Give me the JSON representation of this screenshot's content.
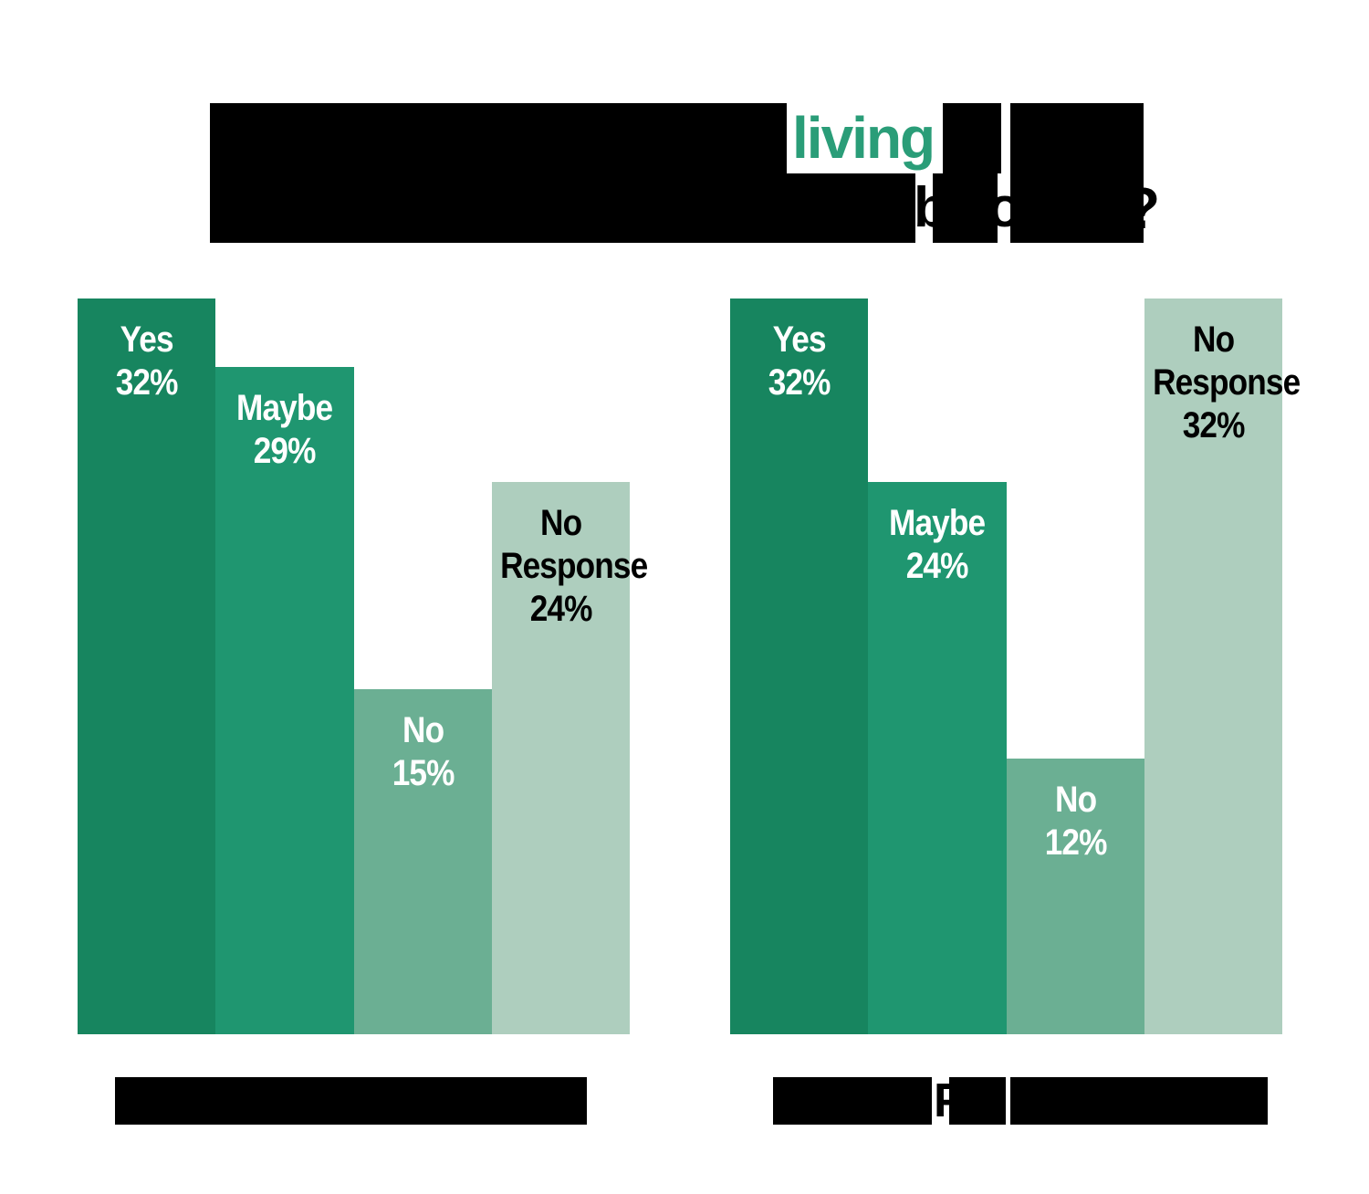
{
  "page": {
    "background": "#FFFFFF",
    "redacted_title": true,
    "redacted_axis_labels": true
  },
  "title": {
    "visible_word": "living",
    "visible_word_color": "#2A9D78",
    "trailing_question_mark": "?",
    "line2_partial_glyph_a": "b",
    "line2_partial_glyph_b": "o"
  },
  "footer": {
    "right_label_partial_glyph": "P"
  },
  "palette": {
    "bar_dark_green": "#17855F",
    "bar_green": "#1F9670",
    "bar_sage": "#6BAF93",
    "bar_light_sage": "#AECEBE",
    "accent_green": "#2A9D78",
    "redaction_black": "#000000",
    "label_white": "#FFFFFF",
    "label_black": "#000000"
  },
  "chart_data": [
    {
      "type": "bar",
      "name": "left-chart",
      "categories": [
        "Yes",
        "Maybe",
        "No",
        "No Response"
      ],
      "values": [
        32,
        29,
        15,
        24
      ],
      "value_labels": [
        "32%",
        "29%",
        "15%",
        "24%"
      ],
      "bar_colors": [
        "#17855F",
        "#1F9670",
        "#6BAF93",
        "#AECEBE"
      ],
      "label_colors": [
        "#FFFFFF",
        "#FFFFFF",
        "#FFFFFF",
        "#000000"
      ],
      "unit": "%",
      "ylim": [
        0,
        32
      ],
      "grid": false,
      "legend": false,
      "xlabel": "",
      "xlabel_redacted": true
    },
    {
      "type": "bar",
      "name": "right-chart",
      "categories": [
        "Yes",
        "Maybe",
        "No",
        "No Response"
      ],
      "values": [
        32,
        24,
        12,
        32
      ],
      "value_labels": [
        "32%",
        "24%",
        "12%",
        "32%"
      ],
      "bar_colors": [
        "#17855F",
        "#1F9670",
        "#6BAF93",
        "#AECEBE"
      ],
      "label_colors": [
        "#FFFFFF",
        "#FFFFFF",
        "#FFFFFF",
        "#000000"
      ],
      "unit": "%",
      "ylim": [
        0,
        32
      ],
      "grid": false,
      "legend": false,
      "xlabel": "",
      "xlabel_redacted": true
    }
  ],
  "layout_note_visible_only": "title mostly covered by black redaction bars; only 'living' (green), a '?', and small letter slivers visible; both x-axis labels covered by black redaction bars"
}
